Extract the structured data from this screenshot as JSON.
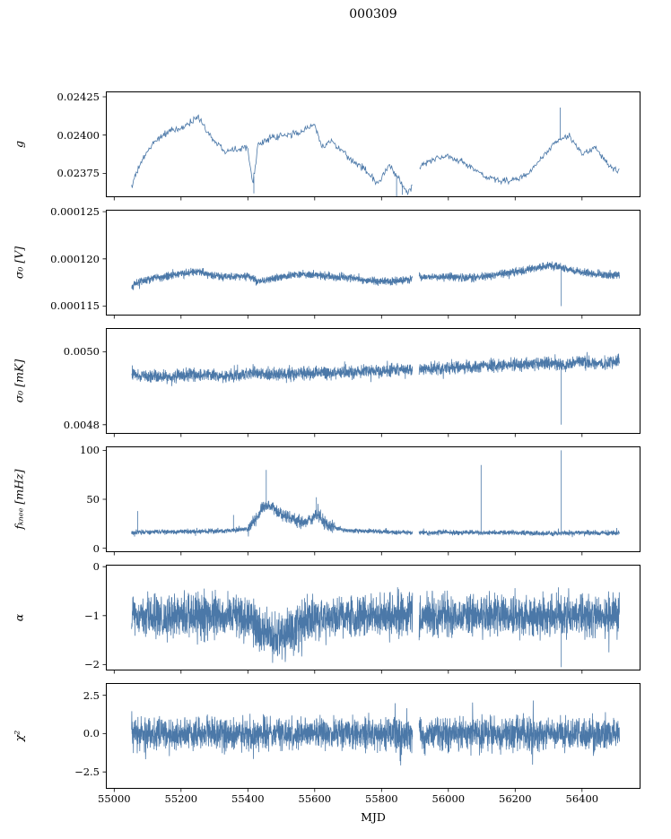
{
  "title": "000309",
  "xlabel": "MJD",
  "style": {
    "line_color": "#4b78a8",
    "axis_color": "#000000"
  },
  "chart_data": {
    "type": "line",
    "title": "000309",
    "xlabel": "MJD",
    "legend": "none",
    "grid": false,
    "x_axis": {
      "min": 54975,
      "max": 56575,
      "start": 55052,
      "end": 56512,
      "ticks": [
        55000,
        55200,
        55400,
        55600,
        55800,
        56000,
        56200,
        56400
      ],
      "tick_labels": [
        "55000",
        "55200",
        "55400",
        "55600",
        "55800",
        "56000",
        "56200",
        "56400"
      ],
      "gaps": [
        [
          55893,
          55912
        ]
      ]
    },
    "panels": [
      {
        "name": "g",
        "ylabel": "g",
        "ylim": [
          0.023595,
          0.024285
        ],
        "yticks": [
          {
            "v": 0.02375,
            "l": "0.02375"
          },
          {
            "v": 0.024,
            "l": "0.02400"
          },
          {
            "v": 0.02425,
            "l": "0.02425"
          }
        ],
        "step": 2,
        "amp": 3.2e-05,
        "tail_p": 0.02,
        "tail_f": 1.5,
        "trend": {
          "x": [
            55050,
            55080,
            55120,
            55160,
            55200,
            55250,
            55300,
            55330,
            55360,
            55400,
            55415,
            55430,
            55470,
            55520,
            55560,
            55600,
            55620,
            55650,
            55700,
            55750,
            55790,
            55820,
            55850,
            55880,
            55920,
            55960,
            56000,
            56040,
            56080,
            56120,
            56160,
            56200,
            56240,
            56280,
            56320,
            56360,
            56400,
            56440,
            56480,
            56510
          ],
          "y": [
            0.02366,
            0.02382,
            0.02396,
            0.02402,
            0.02404,
            0.02412,
            0.02396,
            0.0239,
            0.02391,
            0.02392,
            0.02368,
            0.02394,
            0.02398,
            0.024,
            0.02402,
            0.02408,
            0.02392,
            0.02396,
            0.02385,
            0.02378,
            0.02368,
            0.0238,
            0.02372,
            0.02362,
            0.0238,
            0.02385,
            0.02386,
            0.02383,
            0.02377,
            0.02372,
            0.0237,
            0.02371,
            0.02375,
            0.02385,
            0.02395,
            0.024,
            0.02388,
            0.02392,
            0.0238,
            0.02376
          ]
        },
        "spikes": [
          {
            "x": 55418,
            "y": 0.02362
          },
          {
            "x": 55845,
            "y": 0.0236
          },
          {
            "x": 55862,
            "y": 0.02361
          },
          {
            "x": 56335,
            "y": 0.02418
          }
        ]
      },
      {
        "name": "sigma0-v",
        "ylabel": "σ₀ [V]",
        "ylim": [
          0.000114,
          0.0001252
        ],
        "yticks": [
          {
            "v": 0.000115,
            "l": "0.000115"
          },
          {
            "v": 0.00012,
            "l": "0.000120"
          },
          {
            "v": 0.000125,
            "l": "0.000125"
          }
        ],
        "step": 0.5,
        "amp": 6e-07,
        "tail_p": 0.03,
        "tail_f": 1.7,
        "trend": {
          "x": [
            55050,
            55100,
            55150,
            55200,
            55250,
            55300,
            55350,
            55400,
            55430,
            55500,
            55560,
            55620,
            55700,
            55760,
            55820,
            55880,
            55920,
            56000,
            56060,
            56120,
            56180,
            56240,
            56300,
            56340,
            56400,
            56460,
            56510
          ],
          "y": [
            0.0001172,
            0.0001178,
            0.0001182,
            0.0001184,
            0.0001187,
            0.0001182,
            0.0001181,
            0.0001182,
            0.0001176,
            0.0001181,
            0.0001184,
            0.0001182,
            0.000118,
            0.0001177,
            0.0001176,
            0.0001178,
            0.0001181,
            0.0001181,
            0.000118,
            0.0001182,
            0.0001185,
            0.0001189,
            0.0001193,
            0.0001191,
            0.0001186,
            0.0001183,
            0.0001183
          ]
        },
        "spikes": [
          {
            "x": 56338,
            "y": 0.000115
          }
        ]
      },
      {
        "name": "sigma0-mk",
        "ylabel": "σ₀ [mK]",
        "ylim": [
          0.004775,
          0.005065
        ],
        "yticks": [
          {
            "v": 0.0048,
            "l": "0.0048"
          },
          {
            "v": 0.005,
            "l": "0.0050"
          }
        ],
        "step": 0.5,
        "amp": 2.5e-05,
        "tail_p": 0.03,
        "tail_f": 1.7,
        "trend": {
          "x": [
            55050,
            55150,
            55250,
            55350,
            55420,
            55450,
            55500,
            55600,
            55700,
            55800,
            55900,
            56000,
            56100,
            56200,
            56300,
            56340,
            56400,
            56460,
            56510
          ],
          "y": [
            0.004935,
            0.004932,
            0.004938,
            0.00493,
            0.004945,
            0.004938,
            0.00494,
            0.004942,
            0.004945,
            0.004948,
            0.004952,
            0.004955,
            0.00496,
            0.004965,
            0.004968,
            0.004962,
            0.004972,
            0.004968,
            0.004975
          ]
        },
        "spikes": [
          {
            "x": 56338,
            "y": 0.0048
          }
        ]
      },
      {
        "name": "fknee",
        "ylabel": "fₖₙₑₑ [mHz]",
        "ylim": [
          -4,
          104
        ],
        "yticks": [
          {
            "v": 0,
            "l": "0"
          },
          {
            "v": 50,
            "l": "50"
          },
          {
            "v": 100,
            "l": "100"
          }
        ],
        "step": 0.5,
        "amp": 3.5,
        "tail_p": 0.06,
        "tail_f": 1.8,
        "amp_segments": [
          {
            "x0": 55400,
            "x1": 55660,
            "f": 2.6
          }
        ],
        "trend": {
          "x": [
            55050,
            55150,
            55250,
            55350,
            55400,
            55420,
            55440,
            55460,
            55480,
            55500,
            55530,
            55560,
            55590,
            55610,
            55640,
            55700,
            55800,
            55900,
            56000,
            56100,
            56200,
            56300,
            56400,
            56510
          ],
          "y": [
            16,
            17,
            17,
            18,
            20,
            28,
            40,
            45,
            40,
            35,
            30,
            26,
            30,
            34,
            22,
            18,
            17,
            16,
            16,
            16,
            16,
            15,
            16,
            15
          ]
        },
        "spikes": [
          {
            "x": 55070,
            "y": 38
          },
          {
            "x": 55357,
            "y": 34
          },
          {
            "x": 55455,
            "y": 80
          },
          {
            "x": 55605,
            "y": 52
          },
          {
            "x": 56098,
            "y": 85
          },
          {
            "x": 56338,
            "y": 100
          }
        ]
      },
      {
        "name": "alpha",
        "ylabel": "α",
        "ylim": [
          -2.12,
          0.04
        ],
        "yticks": [
          {
            "v": 0,
            "l": "0"
          },
          {
            "v": -1,
            "l": "−1"
          },
          {
            "v": -2,
            "l": "−2"
          }
        ],
        "step": 0.5,
        "amp": 0.62,
        "tail_p": 0.03,
        "tail_f": 1.35,
        "amp_segments": [
          {
            "x0": 55420,
            "x1": 55600,
            "f": 1.1
          }
        ],
        "trend": {
          "x": [
            55050,
            55350,
            55400,
            55420,
            55440,
            55470,
            55500,
            55530,
            55560,
            55590,
            55620,
            55700,
            56510
          ],
          "y": [
            -1.0,
            -1.0,
            -1.05,
            -1.15,
            -1.3,
            -1.4,
            -1.45,
            -1.4,
            -1.25,
            -1.1,
            -1.05,
            -1.0,
            -1.0
          ]
        },
        "spikes": [
          {
            "x": 56338,
            "y": -2.05
          }
        ]
      },
      {
        "name": "chi2",
        "ylabel": "χ²",
        "ylim": [
          -3.6,
          3.3
        ],
        "yticks": [
          {
            "v": 2.5,
            "l": "2.5"
          },
          {
            "v": 0.0,
            "l": "0.0"
          },
          {
            "v": -2.5,
            "l": "−2.5"
          }
        ],
        "step": 0.5,
        "amp": 1.5,
        "tail_p": 0.05,
        "tail_f": 1.8,
        "trend": {
          "x": [
            55050,
            56512
          ],
          "y": [
            0,
            0
          ]
        },
        "spikes": []
      }
    ]
  }
}
